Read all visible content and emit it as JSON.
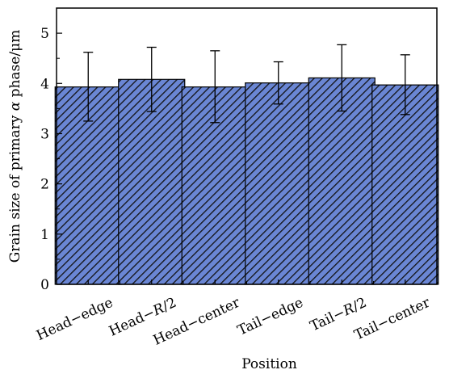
{
  "chart_data": {
    "type": "bar",
    "categories": [
      "Head−edge",
      "Head−R/2",
      "Head−center",
      "Tail−edge",
      "Tail−R/2",
      "Tail−center"
    ],
    "category_label_parts": [
      [
        "Head−edge",
        ""
      ],
      [
        "Head−",
        "R",
        "/2"
      ],
      [
        "Head−center",
        ""
      ],
      [
        "Tail−edge",
        ""
      ],
      [
        "Tail−",
        "R",
        "/2"
      ],
      [
        "Tail−center",
        ""
      ]
    ],
    "values": [
      3.93,
      4.08,
      3.93,
      4.01,
      4.11,
      3.97
    ],
    "error_upper": [
      4.62,
      4.72,
      4.65,
      4.43,
      4.77,
      4.57
    ],
    "error_lower": [
      3.25,
      3.44,
      3.22,
      3.59,
      3.45,
      3.38
    ],
    "xlabel": "Position",
    "ylabel_parts": [
      "Grain size of primary ",
      "α",
      " phase/",
      "μ",
      "m"
    ],
    "ylim": [
      0,
      5.5
    ],
    "yticks": [
      0,
      1,
      2,
      3,
      4,
      5
    ],
    "ytick_labels": [
      "0",
      "1",
      "2",
      "3",
      "4",
      "5"
    ],
    "grid": false,
    "bar_fill": "#6a86d4",
    "hatch": "diagonal"
  }
}
